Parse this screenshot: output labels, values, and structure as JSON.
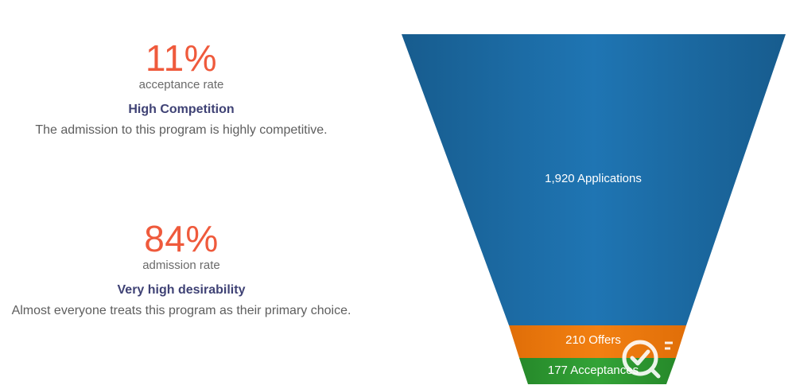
{
  "stats": [
    {
      "value": "11%",
      "caption": "acceptance rate",
      "heading": "High Competition",
      "description": "The admission to this program is highly competitive."
    },
    {
      "value": "84%",
      "caption": "admission rate",
      "heading": "Very high desirability",
      "description": "Almost everyone treats this program as their primary choice."
    }
  ],
  "funnel": {
    "stages": [
      {
        "label": "1,920 Applications",
        "value": 1920,
        "color": "#1f72ad"
      },
      {
        "label": "210 Offers",
        "value": 210,
        "color": "#ef7d0f"
      },
      {
        "label": "177 Acceptances",
        "value": 177,
        "color": "#2e9a2f"
      }
    ],
    "watermark_icon": "check-badge-icon"
  },
  "colors": {
    "accent": "#ef5a3c",
    "heading": "#3f4275",
    "text": "#5e5e5e"
  }
}
